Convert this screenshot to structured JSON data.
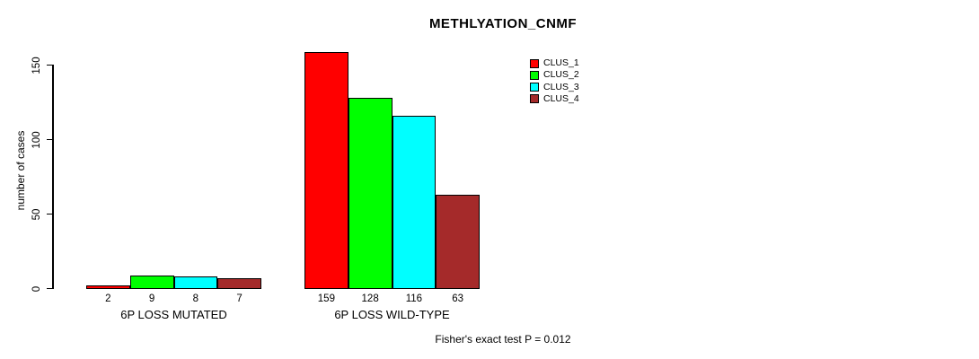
{
  "chart_data": {
    "type": "bar",
    "title": "METHLYATION_CNMF",
    "ylabel": "number of cases",
    "xlabel": "",
    "ylim": [
      0,
      150
    ],
    "yticks": [
      0,
      50,
      100,
      150
    ],
    "grid": false,
    "legend_position": "top-right",
    "categories": [
      "6P LOSS MUTATED",
      "6P LOSS WILD-TYPE"
    ],
    "series": [
      {
        "name": "CLUS_1",
        "color": "#ff0000",
        "values": [
          2,
          159
        ]
      },
      {
        "name": "CLUS_2",
        "color": "#00ff00",
        "values": [
          9,
          128
        ]
      },
      {
        "name": "CLUS_3",
        "color": "#00ffff",
        "values": [
          8,
          116
        ]
      },
      {
        "name": "CLUS_4",
        "color": "#a52a2a",
        "values": [
          7,
          63
        ]
      }
    ],
    "bar_value_labels": [
      [
        2,
        9,
        8,
        7
      ],
      [
        159,
        128,
        116,
        63
      ]
    ],
    "annotation": "Fisher's exact test P = 0.012"
  }
}
